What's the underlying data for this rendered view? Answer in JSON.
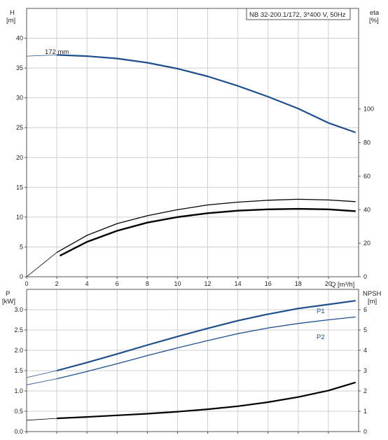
{
  "chart_data": [
    {
      "type": "line",
      "title": "NB 32-200.1/172, 3*400 V, 50Hz",
      "xlabel": "Q [m³/h]",
      "ylabel": "H\n[m]",
      "y2label": "eta\n[%]",
      "xlim": [
        0,
        22
      ],
      "ylim": [
        0,
        45
      ],
      "y2lim": [
        0,
        160
      ],
      "xticks": [
        0,
        2,
        4,
        6,
        8,
        10,
        12,
        14,
        16,
        18,
        20
      ],
      "yticks": [
        0,
        5,
        10,
        15,
        20,
        25,
        30,
        35,
        40
      ],
      "y2ticks": [
        0,
        20,
        40,
        60,
        80,
        100
      ],
      "grid": true,
      "series": [
        {
          "name": "172 mm",
          "axis": "H",
          "color": "#1f4e8c",
          "x": [
            0,
            2,
            4,
            6,
            8,
            10,
            12,
            14,
            16,
            18,
            20,
            21.8
          ],
          "values": [
            37.0,
            37.2,
            37.0,
            36.6,
            35.9,
            34.9,
            33.6,
            32.0,
            30.2,
            28.2,
            25.8,
            24.2
          ]
        },
        {
          "axis": "eta",
          "color": "#000000",
          "x": [
            0,
            2,
            4,
            6,
            8,
            10,
            12,
            14,
            16,
            18,
            20,
            21.8
          ],
          "values": [
            0,
            14.5,
            24.7,
            31.7,
            36.4,
            40.0,
            42.8,
            44.5,
            45.6,
            46.2,
            45.8,
            44.8
          ]
        },
        {
          "axis": "eta",
          "color": "#000000",
          "x": [
            2.2,
            4,
            6,
            8,
            10,
            12,
            14,
            16,
            18,
            20,
            21.8
          ],
          "values": [
            12.5,
            20.8,
            27.4,
            32.3,
            35.6,
            37.9,
            39.4,
            40.2,
            40.5,
            40.2,
            39.1
          ]
        }
      ]
    },
    {
      "type": "line",
      "xlabel": "",
      "ylabel": "P\n[kW]",
      "y2label": "NPSH\n[m]",
      "xlim": [
        0,
        22
      ],
      "ylim": [
        0,
        3.5
      ],
      "y2lim": [
        0,
        7
      ],
      "yticks": [
        0,
        0.5,
        1.0,
        1.5,
        2.0,
        2.5,
        3.0
      ],
      "y2ticks": [
        0,
        1,
        2,
        3,
        4,
        5,
        6
      ],
      "grid": true,
      "series": [
        {
          "name": "P1",
          "axis": "P",
          "color": "#1f4e8c",
          "x": [
            0,
            2,
            4,
            6,
            8,
            10,
            12,
            14,
            16,
            18,
            20,
            21.8
          ],
          "values": [
            1.33,
            1.5,
            1.7,
            1.91,
            2.13,
            2.34,
            2.54,
            2.73,
            2.89,
            3.03,
            3.13,
            3.22
          ]
        },
        {
          "name": "P2",
          "axis": "P",
          "color": "#1f4e8c",
          "x": [
            0,
            2,
            4,
            6,
            8,
            10,
            12,
            14,
            16,
            18,
            20,
            21.8
          ],
          "values": [
            1.15,
            1.3,
            1.48,
            1.67,
            1.87,
            2.06,
            2.24,
            2.41,
            2.55,
            2.66,
            2.75,
            2.82
          ]
        },
        {
          "axis": "NPSH",
          "color": "#000000",
          "x": [
            0,
            2,
            4,
            6,
            8,
            10,
            12,
            14,
            16,
            18,
            20,
            21.8
          ],
          "values": [
            0.56,
            0.65,
            0.72,
            0.8,
            0.88,
            0.98,
            1.1,
            1.25,
            1.45,
            1.7,
            2.02,
            2.42
          ]
        }
      ]
    }
  ]
}
